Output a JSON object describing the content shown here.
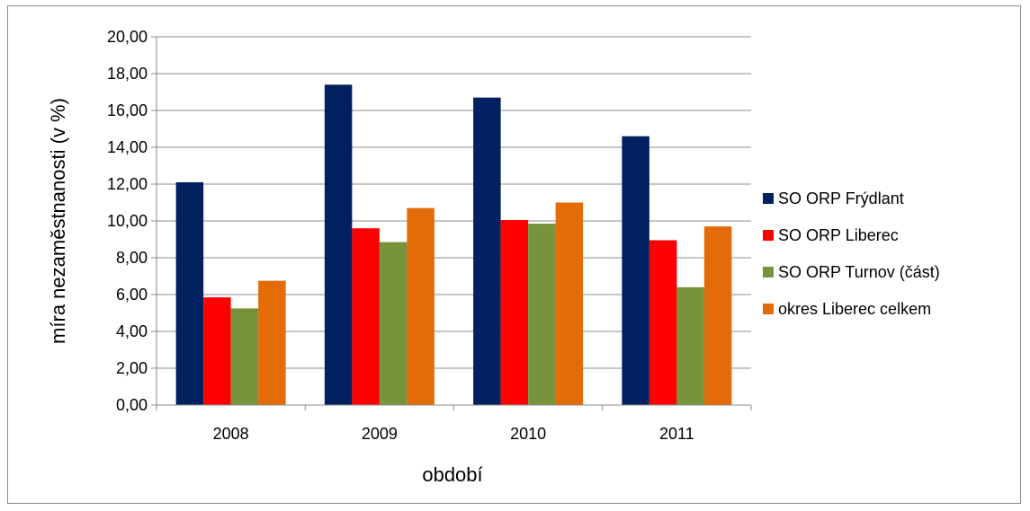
{
  "chart_data": {
    "type": "bar",
    "title": "",
    "xlabel": "období",
    "ylabel": "míra nezaměstnanosti (v %)",
    "ylim": [
      0,
      20
    ],
    "y_ticks": [
      "0,00",
      "2,00",
      "4,00",
      "6,00",
      "8,00",
      "10,00",
      "12,00",
      "14,00",
      "16,00",
      "18,00",
      "20,00"
    ],
    "categories": [
      "2008",
      "2009",
      "2010",
      "2011"
    ],
    "series": [
      {
        "name": "SO ORP Frýdlant",
        "color": "#002060",
        "values": [
          12.1,
          17.4,
          16.7,
          14.6
        ]
      },
      {
        "name": "SO ORP Liberec",
        "color": "#ff0000",
        "values": [
          5.85,
          9.6,
          10.05,
          8.95
        ]
      },
      {
        "name": "SO ORP Turnov (část)",
        "color": "#77933c",
        "values": [
          5.25,
          8.85,
          9.85,
          6.4
        ]
      },
      {
        "name": "okres Liberec celkem",
        "color": "#e36c09",
        "values": [
          6.75,
          10.7,
          11.0,
          9.7
        ]
      }
    ],
    "grid": true,
    "legend_position": "right"
  }
}
